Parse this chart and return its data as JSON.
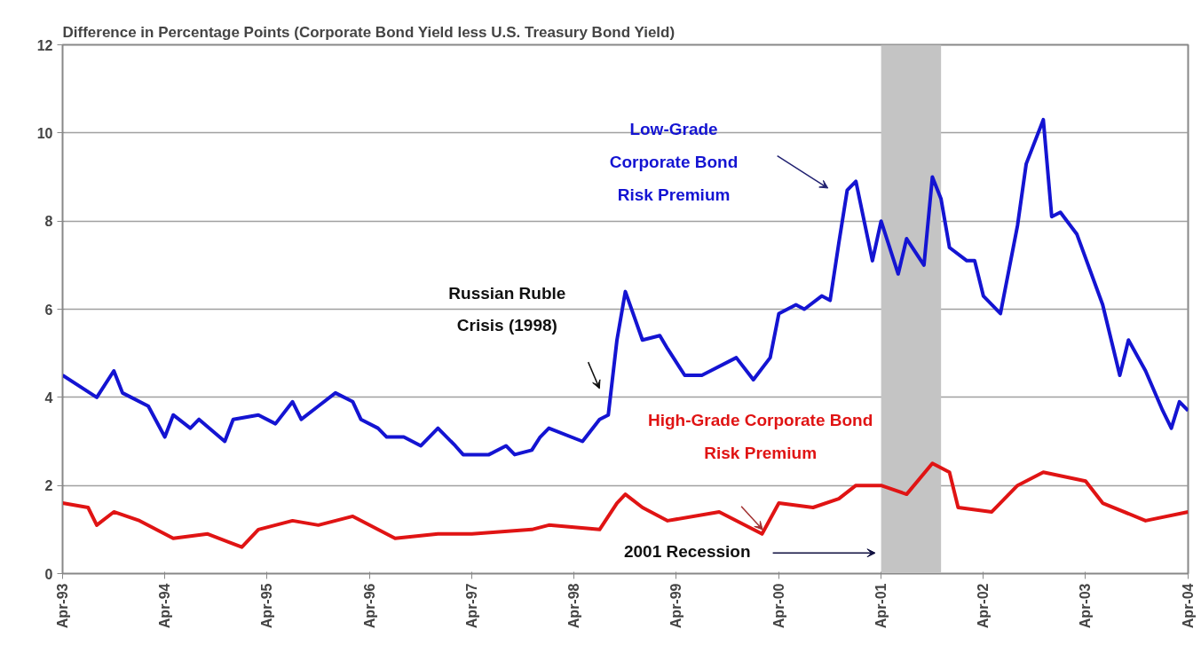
{
  "chart_data": {
    "type": "line",
    "title": "Difference in Percentage Points (Corporate Bond Yield less U.S. Treasury Bond Yield)",
    "xlim": [
      "1993-04",
      "2004-04"
    ],
    "xticks": [
      {
        "value": "1993-04",
        "label": "Apr-93"
      },
      {
        "value": "1994-04",
        "label": "Apr-94"
      },
      {
        "value": "1995-04",
        "label": "Apr-95"
      },
      {
        "value": "1996-04",
        "label": "Apr-96"
      },
      {
        "value": "1997-04",
        "label": "Apr-97"
      },
      {
        "value": "1998-04",
        "label": "Apr-98"
      },
      {
        "value": "1999-04",
        "label": "Apr-99"
      },
      {
        "value": "2000-04",
        "label": "Apr-00"
      },
      {
        "value": "2001-04",
        "label": "Apr-01"
      },
      {
        "value": "2002-04",
        "label": "Apr-02"
      },
      {
        "value": "2003-04",
        "label": "Apr-03"
      },
      {
        "value": "2004-04",
        "label": "Apr-04"
      }
    ],
    "ylim": [
      0,
      12
    ],
    "yticks": [
      0,
      2,
      4,
      6,
      8,
      10,
      12
    ],
    "grid": "y",
    "marker": "none",
    "line_style": "solid",
    "series": [
      {
        "color": "#1414d2",
        "x": [
          "1993-04",
          "1993-08",
          "1993-10",
          "1993-11",
          "1994-02",
          "1994-04",
          "1994-05",
          "1994-07",
          "1994-08",
          "1994-11",
          "1994-12",
          "1995-03",
          "1995-05",
          "1995-07",
          "1995-08",
          "1995-10",
          "1995-12",
          "1996-02",
          "1996-03",
          "1996-05",
          "1996-06",
          "1996-08",
          "1996-10",
          "1996-12",
          "1997-02",
          "1997-03",
          "1997-06",
          "1997-08",
          "1997-09",
          "1997-11",
          "1997-12",
          "1998-01",
          "1998-05",
          "1998-07",
          "1998-08",
          "1998-09",
          "1998-10",
          "1998-12",
          "1999-02",
          "1999-03",
          "1999-05",
          "1999-07",
          "1999-08",
          "1999-11",
          "2000-01",
          "2000-03",
          "2000-04",
          "2000-06",
          "2000-07",
          "2000-09",
          "2000-10",
          "2000-11",
          "2000-12",
          "2001-01",
          "2001-03",
          "2001-04",
          "2001-06",
          "2001-07",
          "2001-09",
          "2001-10",
          "2001-11",
          "2001-12",
          "2002-02",
          "2002-03",
          "2002-04",
          "2002-06",
          "2002-08",
          "2002-09",
          "2002-11",
          "2002-12",
          "2003-01",
          "2003-03",
          "2003-06",
          "2003-08",
          "2003-09",
          "2003-11",
          "2004-01",
          "2004-02",
          "2004-03",
          "2004-04"
        ],
        "values": [
          4.5,
          4.0,
          4.6,
          4.1,
          3.8,
          3.1,
          3.6,
          3.3,
          3.5,
          3.0,
          3.5,
          3.6,
          3.4,
          3.9,
          3.5,
          3.8,
          4.1,
          3.9,
          3.5,
          3.3,
          3.1,
          3.1,
          2.9,
          3.3,
          2.9,
          2.7,
          2.7,
          2.9,
          2.7,
          2.8,
          3.1,
          3.3,
          3.0,
          3.5,
          3.6,
          5.3,
          6.4,
          5.3,
          5.4,
          5.1,
          4.5,
          4.5,
          4.6,
          4.9,
          4.4,
          4.9,
          5.9,
          6.1,
          6.0,
          6.3,
          6.2,
          7.5,
          8.7,
          8.9,
          7.1,
          8.0,
          6.8,
          7.6,
          7.0,
          9.0,
          8.5,
          7.4,
          7.1,
          7.1,
          6.3,
          5.9,
          7.9,
          9.3,
          10.3,
          8.1,
          8.2,
          7.7,
          6.1,
          4.5,
          5.3,
          4.6,
          3.7,
          3.3,
          3.9,
          3.7
        ]
      },
      {
        "color": "#e01414",
        "x": [
          "1993-04",
          "1993-07",
          "1993-08",
          "1993-10",
          "1994-01",
          "1994-05",
          "1994-09",
          "1995-01",
          "1995-03",
          "1995-07",
          "1995-10",
          "1996-02",
          "1996-07",
          "1996-12",
          "1997-04",
          "1997-11",
          "1998-01",
          "1998-07",
          "1998-09",
          "1998-10",
          "1998-12",
          "1999-03",
          "1999-09",
          "2000-02",
          "2000-04",
          "2000-08",
          "2000-11",
          "2001-01",
          "2001-04",
          "2001-07",
          "2001-10",
          "2001-12",
          "2002-01",
          "2002-05",
          "2002-08",
          "2002-11",
          "2003-04",
          "2003-06",
          "2003-11",
          "2004-04"
        ],
        "values": [
          1.6,
          1.5,
          1.1,
          1.4,
          1.2,
          0.8,
          0.9,
          0.6,
          1.0,
          1.2,
          1.1,
          1.3,
          0.8,
          0.9,
          0.9,
          1.0,
          1.1,
          1.0,
          1.6,
          1.8,
          1.5,
          1.2,
          1.4,
          0.9,
          1.6,
          1.5,
          1.7,
          2.0,
          2.0,
          1.8,
          2.5,
          2.3,
          1.5,
          1.4,
          2.0,
          2.3,
          2.1,
          1.6,
          1.2,
          1.4
        ]
      }
    ],
    "bands": [
      {
        "axis": "x",
        "from": "2001-04",
        "to": "2001-11",
        "color": "#c4c4c4"
      }
    ],
    "annotations": [
      "Low-Grade\nCorporate Bond\nRisk Premium",
      "High-Grade Corporate Bond\nRisk Premium",
      "Russian Ruble\nCrisis (1998)",
      "2001 Recession"
    ]
  }
}
